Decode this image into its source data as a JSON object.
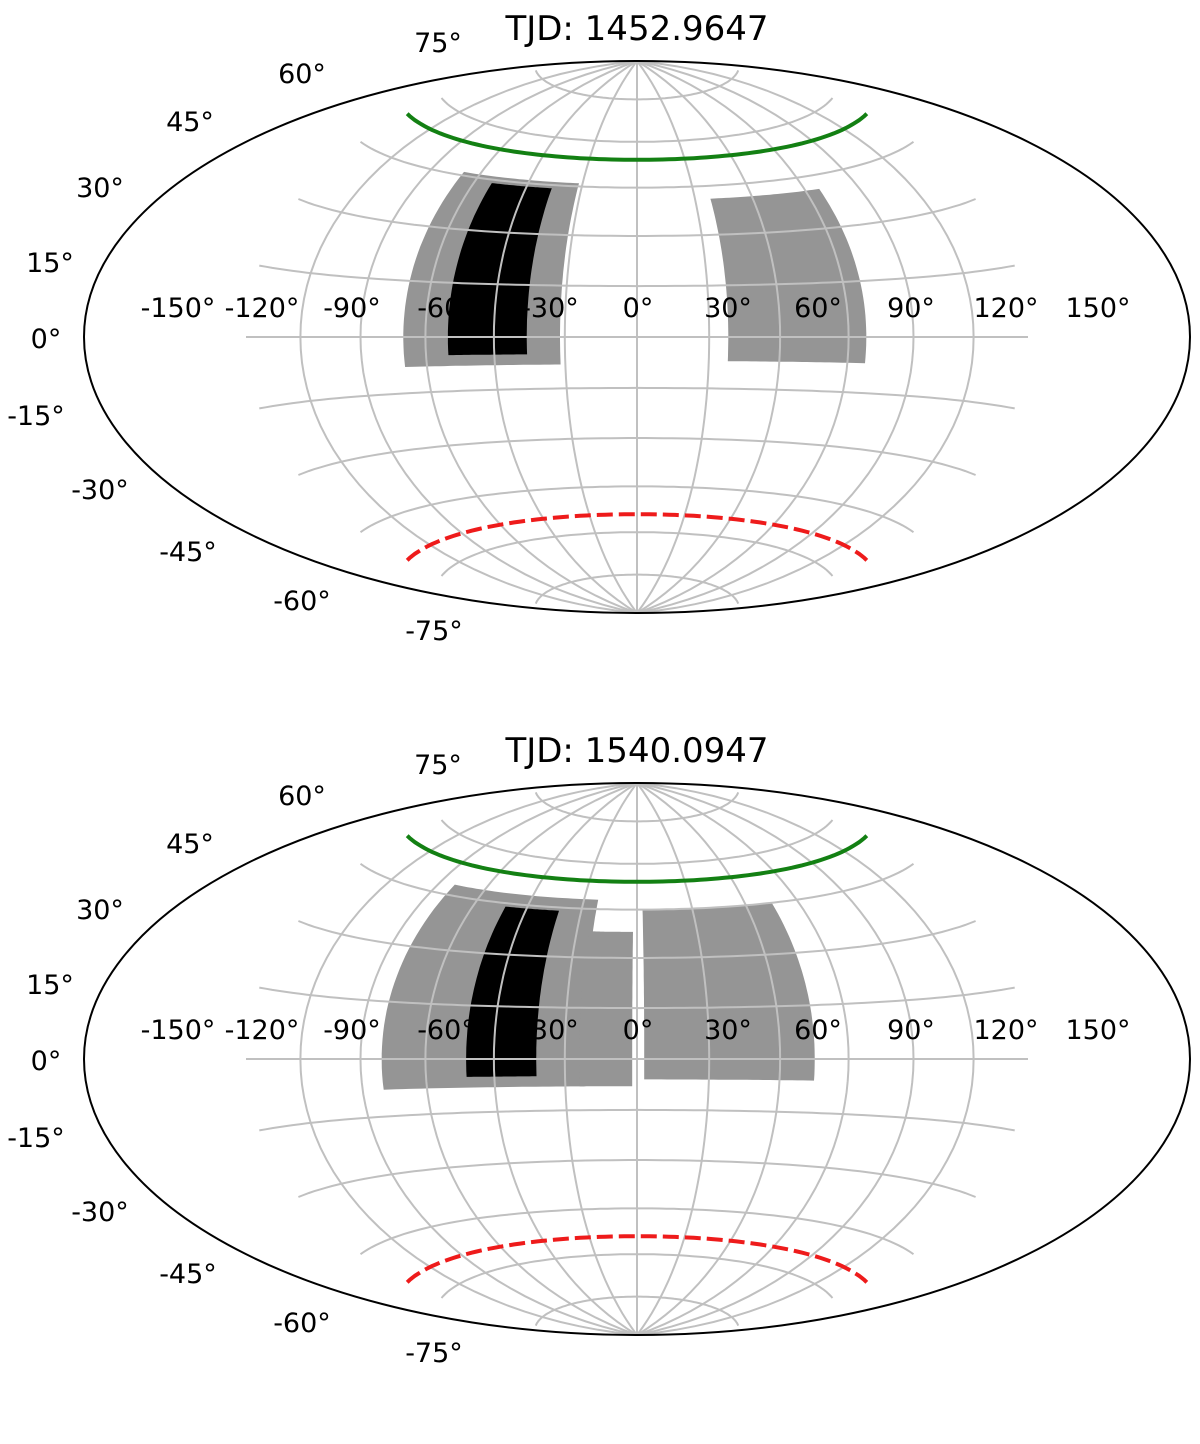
{
  "figure": {
    "projection": "hammer",
    "panels": [
      {
        "title": "TJD: 1452.9647",
        "lon_tick_labels": [
          "-150°",
          "-120°",
          "-90°",
          "-60°",
          "-30°",
          "0°",
          "30°",
          "60°",
          "90°",
          "120°",
          "150°"
        ],
        "lat_tick_labels": [
          "-75°",
          "-60°",
          "-45°",
          "-30°",
          "-15°",
          "0°",
          "15°",
          "30°",
          "45°",
          "60°",
          "75°"
        ],
        "colors": {
          "grid": "#c0c0c0",
          "frame": "#000000",
          "coverage": "#959595",
          "selected": "#000000",
          "north_boundary": "#138013",
          "south_boundary": "#ee1b1b"
        },
        "north_boundary": {
          "latitude_deg": 54,
          "style": "solid"
        },
        "south_boundary": {
          "latitude_deg": -54,
          "style": "dashed"
        },
        "regions": [
          {
            "kind": "coverage",
            "lon_min": -100,
            "lon_max": -32,
            "lat_min": -8,
            "lat_max": 46
          },
          {
            "kind": "coverage",
            "lon_min": 38,
            "lon_max": 98,
            "lat_min": -7,
            "lat_max": 41
          },
          {
            "kind": "selected",
            "lon_min": -80,
            "lon_max": -46,
            "lat_min": -5,
            "lat_max": 44
          }
        ]
      },
      {
        "title": "TJD: 1540.0947",
        "lon_tick_labels": [
          "-150°",
          "-120°",
          "-90°",
          "-60°",
          "-30°",
          "0°",
          "30°",
          "60°",
          "90°",
          "120°",
          "150°"
        ],
        "lat_tick_labels": [
          "-75°",
          "-60°",
          "-45°",
          "-30°",
          "-15°",
          "0°",
          "15°",
          "30°",
          "45°",
          "60°",
          "75°"
        ],
        "colors": {
          "grid": "#c0c0c0",
          "frame": "#000000",
          "coverage": "#959595",
          "selected": "#000000",
          "north_boundary": "#138013",
          "south_boundary": "#ee1b1b"
        },
        "north_boundary": {
          "latitude_deg": 54,
          "style": "solid"
        },
        "south_boundary": {
          "latitude_deg": -54,
          "style": "dashed"
        },
        "regions": [
          {
            "kind": "coverage",
            "lon_min": -110,
            "lon_max": -22,
            "lat_min": -8,
            "lat_max": 48
          },
          {
            "kind": "coverage",
            "lon_min": -24,
            "lon_max": -2,
            "lat_min": -8,
            "lat_max": 38
          },
          {
            "kind": "coverage",
            "lon_min": 3,
            "lon_max": 75,
            "lat_min": -6,
            "lat_max": 45
          },
          {
            "kind": "selected",
            "lon_min": -72,
            "lon_max": -42,
            "lat_min": -5,
            "lat_max": 44
          }
        ]
      }
    ]
  }
}
